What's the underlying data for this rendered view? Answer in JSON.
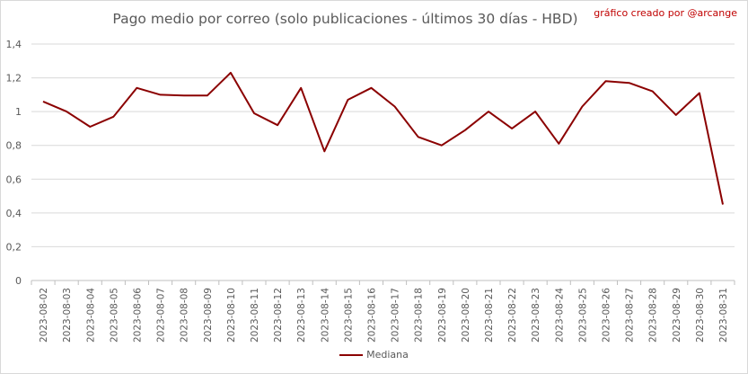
{
  "chart_data": {
    "type": "line",
    "title": "Pago medio por correo (solo publicaciones - últimos 30 días - HBD)",
    "credit": "gráfico creado por @arcange",
    "xlabel": "",
    "ylabel": "",
    "ylim": [
      0,
      1.4
    ],
    "yticks": [
      "0",
      "0,2",
      "0,4",
      "0,6",
      "0,8",
      "1",
      "1,2",
      "1,4"
    ],
    "grid": true,
    "legend_position": "bottom",
    "categories": [
      "2023-08-02",
      "2023-08-03",
      "2023-08-04",
      "2023-08-05",
      "2023-08-06",
      "2023-08-07",
      "2023-08-08",
      "2023-08-09",
      "2023-08-10",
      "2023-08-11",
      "2023-08-12",
      "2023-08-13",
      "2023-08-14",
      "2023-08-15",
      "2023-08-16",
      "2023-08-17",
      "2023-08-18",
      "2023-08-19",
      "2023-08-20",
      "2023-08-21",
      "2023-08-22",
      "2023-08-23",
      "2023-08-24",
      "2023-08-25",
      "2023-08-26",
      "2023-08-27",
      "2023-08-28",
      "2023-08-29",
      "2023-08-30",
      "2023-08-31"
    ],
    "series": [
      {
        "name": "Mediana",
        "color": "#8b0000",
        "values": [
          1.06,
          1.0,
          0.91,
          0.97,
          1.14,
          1.1,
          1.095,
          1.095,
          1.23,
          0.99,
          0.92,
          1.14,
          0.765,
          1.07,
          1.14,
          1.03,
          0.85,
          0.8,
          0.89,
          1.0,
          0.9,
          1.0,
          0.81,
          1.03,
          1.18,
          1.17,
          1.12,
          0.98,
          1.11,
          0.45
        ]
      }
    ]
  }
}
